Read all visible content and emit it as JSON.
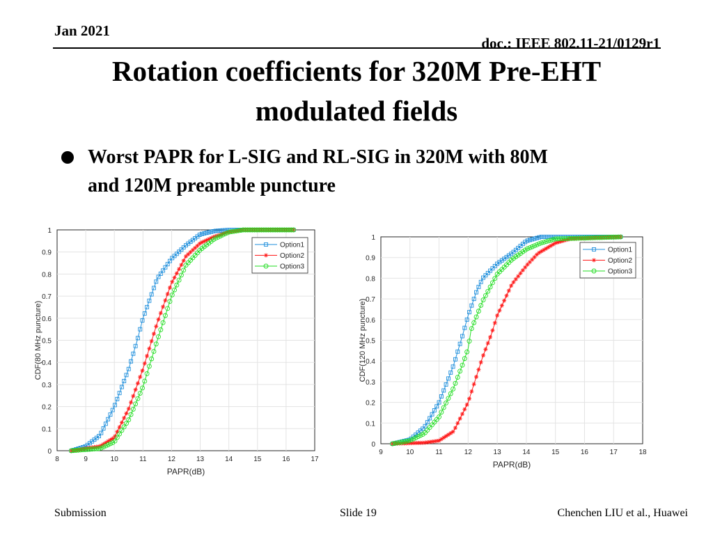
{
  "header": {
    "date": "Jan 2021",
    "doc_id": "doc.: IEEE 802.11-21/0129r1"
  },
  "title": {
    "line1": "Rotation coefficients for 320M Pre-EHT",
    "line2": "modulated fields"
  },
  "bullet": {
    "line1": "Worst PAPR for L-SIG and RL-SIG in 320M with 80M",
    "line2": "and 120M preamble puncture"
  },
  "footer": {
    "left": "Submission",
    "center": "Slide 19",
    "right": "Chenchen LIU et al., Huawei"
  },
  "chart_data": [
    {
      "type": "line",
      "xlabel": "PAPR(dB)",
      "ylabel": "CDF(80 MHz puncture)",
      "xlim": [
        8,
        17
      ],
      "ylim": [
        0,
        1
      ],
      "xticks": [
        "8",
        "9",
        "10",
        "11",
        "12",
        "13",
        "14",
        "15",
        "16",
        "17"
      ],
      "yticks": [
        "0",
        "0.1",
        "0.2",
        "0.3",
        "0.4",
        "0.5",
        "0.6",
        "0.7",
        "0.8",
        "0.9",
        "1"
      ],
      "grid": true,
      "legend": "top-right",
      "series": [
        {
          "name": "Option1",
          "color": "#1f8fdc",
          "marker": "square",
          "x": [
            8.5,
            9,
            9.5,
            10,
            10.5,
            10.8,
            11,
            11.5,
            12,
            12.5,
            13,
            13.5,
            14,
            16.3
          ],
          "y": [
            0,
            0.02,
            0.07,
            0.2,
            0.37,
            0.5,
            0.6,
            0.78,
            0.87,
            0.93,
            0.98,
            0.995,
            1,
            1
          ]
        },
        {
          "name": "Option2",
          "color": "#ff1a1a",
          "marker": "star",
          "x": [
            8.5,
            9.5,
            10,
            10.5,
            11,
            11.5,
            12,
            12.5,
            13,
            13.5,
            14,
            14.5,
            16.3
          ],
          "y": [
            0,
            0.02,
            0.06,
            0.19,
            0.37,
            0.58,
            0.76,
            0.88,
            0.94,
            0.97,
            0.99,
            1,
            1
          ]
        },
        {
          "name": "Option3",
          "color": "#22dd22",
          "marker": "circle",
          "x": [
            8.5,
            9.5,
            10,
            10.5,
            11,
            11.5,
            12,
            12.5,
            13,
            13.5,
            14,
            14.5,
            16.3
          ],
          "y": [
            0,
            0.01,
            0.04,
            0.14,
            0.29,
            0.5,
            0.7,
            0.84,
            0.91,
            0.96,
            0.99,
            1,
            1
          ]
        }
      ]
    },
    {
      "type": "line",
      "xlabel": "PAPR(dB)",
      "ylabel": "CDF(120 MHz puncture)",
      "xlim": [
        9,
        18
      ],
      "ylim": [
        0,
        1
      ],
      "xticks": [
        "9",
        "10",
        "11",
        "12",
        "13",
        "14",
        "15",
        "16",
        "17",
        "18"
      ],
      "yticks": [
        "0",
        "0.1",
        "0.2",
        "0.3",
        "0.4",
        "0.5",
        "0.6",
        "0.7",
        "0.8",
        "0.9",
        "1"
      ],
      "grid": true,
      "legend": "top-right",
      "series": [
        {
          "name": "Option1",
          "color": "#1f8fdc",
          "marker": "square",
          "x": [
            9.4,
            10,
            10.5,
            11,
            11.5,
            11.8,
            12,
            12.3,
            12.5,
            13,
            13.5,
            14,
            14.5,
            17.3
          ],
          "y": [
            0,
            0.02,
            0.08,
            0.2,
            0.38,
            0.52,
            0.62,
            0.74,
            0.8,
            0.87,
            0.92,
            0.98,
            1,
            1
          ]
        },
        {
          "name": "Option2",
          "color": "#ff1a1a",
          "marker": "star",
          "x": [
            9.4,
            10.5,
            11,
            11.5,
            12,
            12.5,
            12.8,
            13,
            13.5,
            14,
            14.4,
            15,
            15.5,
            17.3
          ],
          "y": [
            0,
            0.005,
            0.015,
            0.06,
            0.2,
            0.42,
            0.53,
            0.62,
            0.77,
            0.86,
            0.92,
            0.97,
            0.99,
            1
          ]
        },
        {
          "name": "Option3",
          "color": "#22dd22",
          "marker": "circle",
          "x": [
            9.4,
            10,
            10.5,
            11,
            11.5,
            11.8,
            12,
            12.1,
            12.3,
            12.5,
            13,
            13.5,
            14,
            14.5,
            15,
            17.3
          ],
          "y": [
            0,
            0.015,
            0.05,
            0.13,
            0.27,
            0.38,
            0.46,
            0.55,
            0.62,
            0.69,
            0.82,
            0.89,
            0.94,
            0.97,
            0.99,
            1
          ]
        }
      ]
    }
  ]
}
